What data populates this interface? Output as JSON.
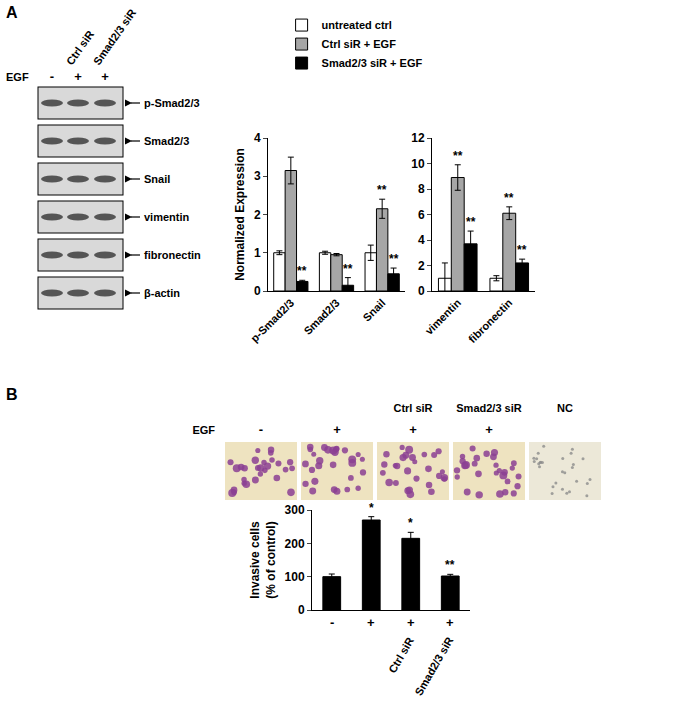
{
  "figure": {
    "panel_a": {
      "label": "A",
      "blot": {
        "columns": [
          null,
          "Ctrl siR",
          "Smad2/3 siR"
        ],
        "treatment_label": "EGF",
        "treatment": [
          "-",
          "+",
          "+"
        ],
        "rows": [
          "p-Smad2/3",
          "Smad2/3",
          "Snail",
          "vimentin",
          "fibronectin",
          "β-actin"
        ]
      }
    },
    "panel_b": {
      "label": "B",
      "images": {
        "columns": [
          null,
          null,
          "Ctrl siR",
          "Smad2/3 siR",
          "NC"
        ],
        "treatment_label": "EGF",
        "treatment": [
          "-",
          "+",
          "+",
          "+",
          null
        ]
      }
    }
  },
  "chart_data": [
    {
      "type": "bar",
      "categories": [
        "p-Smad2/3",
        "Smad2/3",
        "Snail"
      ],
      "ylabel": "Normalized Expression",
      "ylim": [
        0,
        4
      ],
      "yticks": [
        0,
        1,
        2,
        3,
        4
      ],
      "legend": "top",
      "series": [
        {
          "name": "untreated ctrl",
          "color": "#ffffff",
          "values": [
            1.0,
            1.0,
            1.0
          ],
          "errors": [
            0.05,
            0.04,
            0.2
          ],
          "annotations": [
            null,
            null,
            null
          ]
        },
        {
          "name": "Ctrl siR + EGF",
          "color": "#a6a6a6",
          "values": [
            3.15,
            0.95,
            2.15
          ],
          "errors": [
            0.35,
            0.03,
            0.25
          ],
          "annotations": [
            null,
            null,
            "**"
          ]
        },
        {
          "name": "Smad2/3 siR + EGF",
          "color": "#000000",
          "values": [
            0.25,
            0.15,
            0.45
          ],
          "errors": [
            0.03,
            0.2,
            0.15
          ],
          "annotations": [
            "**",
            "**",
            "**"
          ]
        }
      ]
    },
    {
      "type": "bar",
      "categories": [
        "vimentin",
        "fibronectin"
      ],
      "ylim": [
        0,
        12
      ],
      "yticks": [
        0,
        2,
        4,
        6,
        8,
        10,
        12
      ],
      "series": [
        {
          "name": "untreated ctrl",
          "color": "#ffffff",
          "values": [
            1.0,
            1.0
          ],
          "errors": [
            1.2,
            0.2
          ],
          "annotations": [
            null,
            null
          ]
        },
        {
          "name": "Ctrl siR + EGF",
          "color": "#a6a6a6",
          "values": [
            8.9,
            6.1
          ],
          "errors": [
            1.0,
            0.5
          ],
          "annotations": [
            "**",
            "**"
          ]
        },
        {
          "name": "Smad2/3 siR + EGF",
          "color": "#000000",
          "values": [
            3.7,
            2.2
          ],
          "errors": [
            1.0,
            0.3
          ],
          "annotations": [
            "**",
            "**"
          ]
        }
      ]
    },
    {
      "type": "bar",
      "categories": [
        null,
        null,
        null,
        null
      ],
      "tick_labels": "y",
      "ylabel": "Invasive cells\n(% of control)",
      "ylim": [
        0,
        300
      ],
      "yticks": [
        0,
        100,
        200,
        300
      ],
      "x_table": {
        "label": "EGF",
        "row": [
          "-",
          "+",
          "+",
          "+"
        ],
        "treatments": [
          null,
          null,
          "Ctrl siR",
          "Smad2/3 siR"
        ]
      },
      "series": [
        {
          "color": "#000000",
          "values": [
            100,
            270,
            215,
            102
          ],
          "errors": [
            8,
            10,
            18,
            5
          ],
          "annotations": [
            null,
            "*",
            "*",
            "**"
          ]
        }
      ]
    }
  ]
}
